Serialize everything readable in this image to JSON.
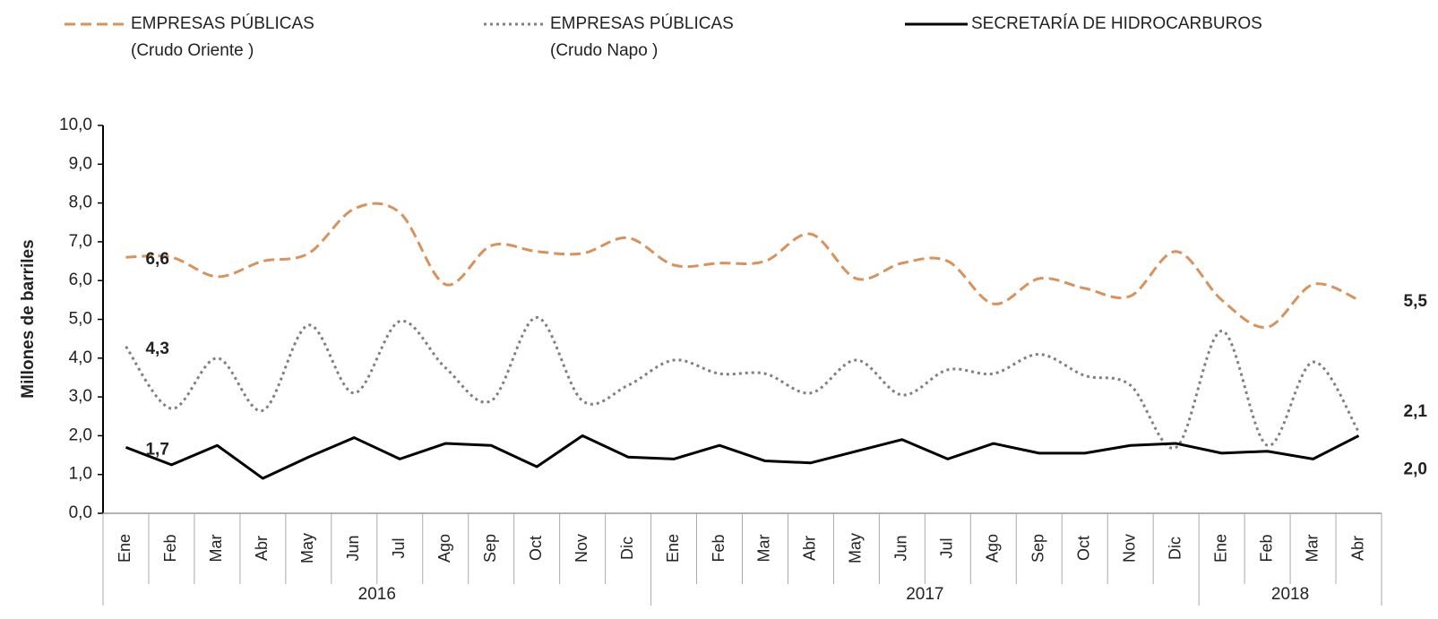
{
  "chart_data": {
    "type": "line",
    "y_label": "Millones de barriles",
    "groups": [
      {
        "label": "2016",
        "categories": [
          "Ene",
          "Feb",
          "Mar",
          "Abr",
          "May",
          "Jun",
          "Jul",
          "Ago",
          "Sep",
          "Oct",
          "Nov",
          "Dic"
        ]
      },
      {
        "label": "2017",
        "categories": [
          "Ene",
          "Feb",
          "Mar",
          "Abr",
          "May",
          "Jun",
          "Jul",
          "Ago",
          "Sep",
          "Oct",
          "Nov",
          "Dic"
        ]
      },
      {
        "label": "2018",
        "categories": [
          "Ene",
          "Feb",
          "Mar",
          "Abr"
        ]
      }
    ],
    "ylim": [
      0,
      10
    ],
    "yticks": [
      {
        "value": 0,
        "label": "0,0"
      },
      {
        "value": 1,
        "label": "1,0"
      },
      {
        "value": 2,
        "label": "2,0"
      },
      {
        "value": 3,
        "label": "3,0"
      },
      {
        "value": 4,
        "label": "4,0"
      },
      {
        "value": 5,
        "label": "5,0"
      },
      {
        "value": 6,
        "label": "6,0"
      },
      {
        "value": 7,
        "label": "7,0"
      },
      {
        "value": 8,
        "label": "8,0"
      },
      {
        "value": 9,
        "label": "9,0"
      },
      {
        "value": 10,
        "label": "10,0"
      }
    ],
    "series": [
      {
        "name": "EMPRESAS PÚBLICAS\n(Crudo Oriente )",
        "color": "#d9925b",
        "line_style": "dashed",
        "smooth": true,
        "values": [
          6.6,
          6.6,
          6.1,
          6.5,
          6.7,
          7.85,
          7.75,
          5.9,
          6.9,
          6.75,
          6.7,
          7.1,
          6.4,
          6.45,
          6.5,
          7.2,
          6.05,
          6.45,
          6.5,
          5.4,
          6.05,
          5.8,
          5.6,
          6.75,
          5.5,
          4.8,
          5.9,
          5.5
        ],
        "value_labels": [
          "6,6",
          null,
          null,
          null,
          null,
          null,
          null,
          null,
          null,
          null,
          null,
          null,
          null,
          null,
          null,
          null,
          null,
          null,
          null,
          null,
          null,
          null,
          null,
          null,
          null,
          null,
          null,
          "5,5"
        ]
      },
      {
        "name": "EMPRESAS PÚBLICAS\n(Crudo Napo )",
        "color": "#808080",
        "line_style": "dotted",
        "smooth": true,
        "values": [
          4.3,
          2.7,
          4.0,
          2.65,
          4.85,
          3.1,
          4.95,
          3.75,
          2.9,
          5.05,
          2.9,
          3.3,
          3.95,
          3.6,
          3.6,
          3.1,
          3.95,
          3.05,
          3.7,
          3.6,
          4.1,
          3.55,
          3.3,
          1.7,
          4.7,
          1.75,
          3.9,
          2.1
        ],
        "value_labels": [
          "4,3",
          null,
          null,
          null,
          null,
          null,
          null,
          null,
          null,
          null,
          null,
          null,
          null,
          null,
          null,
          null,
          null,
          null,
          null,
          null,
          null,
          null,
          null,
          null,
          null,
          null,
          null,
          "2,1"
        ]
      },
      {
        "name": "SECRETARÍA DE HIDROCARBUROS",
        "color": "#000000",
        "line_style": "solid",
        "smooth": false,
        "values": [
          1.7,
          1.25,
          1.75,
          0.9,
          1.45,
          1.95,
          1.4,
          1.8,
          1.75,
          1.2,
          2.0,
          1.45,
          1.4,
          1.75,
          1.35,
          1.3,
          1.6,
          1.9,
          1.4,
          1.8,
          1.55,
          1.55,
          1.75,
          1.8,
          1.55,
          1.6,
          1.4,
          2.0
        ],
        "value_labels": [
          "1,7",
          null,
          null,
          null,
          null,
          null,
          null,
          null,
          null,
          null,
          null,
          null,
          null,
          null,
          null,
          null,
          null,
          null,
          null,
          null,
          null,
          null,
          null,
          null,
          null,
          null,
          null,
          "2,0"
        ]
      }
    ]
  }
}
